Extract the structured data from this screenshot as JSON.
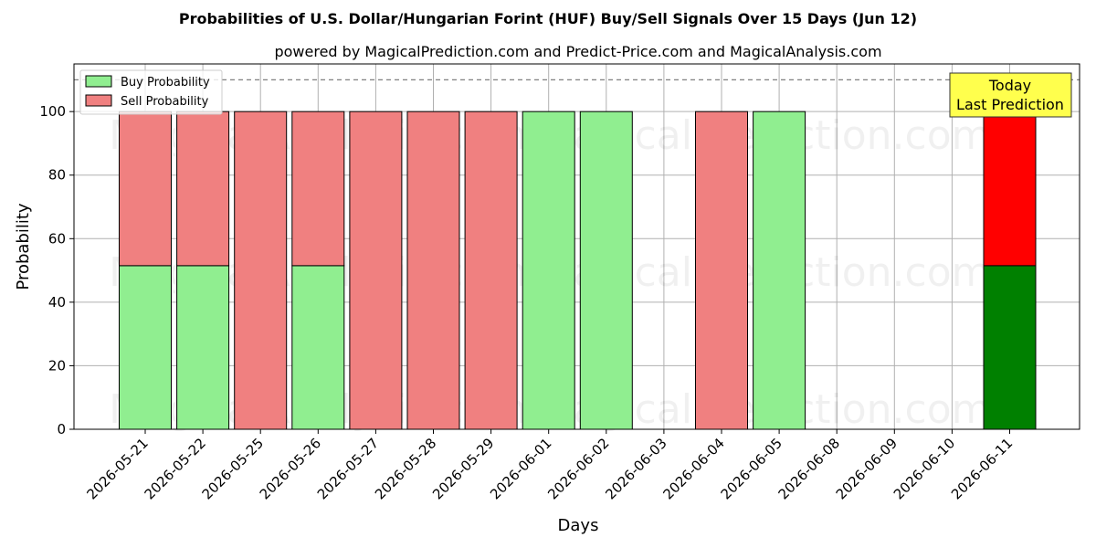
{
  "chart_data": {
    "type": "bar",
    "stacked": true,
    "title": "Probabilities of U.S. Dollar/Hungarian Forint (HUF) Buy/Sell Signals Over 15 Days (Jun 12)",
    "subtitle": "powered by MagicalPrediction.com and Predict-Price.com and MagicalAnalysis.com",
    "xlabel": "Days",
    "ylabel": "Probability",
    "ylim": [
      0,
      115
    ],
    "yticks": [
      0,
      20,
      40,
      60,
      80,
      100
    ],
    "grid": true,
    "legend_position": "top-left",
    "categories": [
      "2026-05-21",
      "2026-05-22",
      "2026-05-25",
      "2026-05-26",
      "2026-05-27",
      "2026-05-28",
      "2026-05-29",
      "2026-06-01",
      "2026-06-02",
      "2026-06-03",
      "2026-06-04",
      "2026-06-05",
      "2026-06-08",
      "2026-06-09",
      "2026-06-10",
      "2026-06-11"
    ],
    "series": [
      {
        "name": "Buy Probability",
        "color": "#90ee90",
        "highlight_color": "#008000",
        "values": [
          51.5,
          51.5,
          0,
          51.5,
          0,
          0,
          0,
          100,
          100,
          null,
          0,
          100,
          null,
          null,
          null,
          51.5
        ]
      },
      {
        "name": "Sell Probability",
        "color": "#f08080",
        "highlight_color": "#ff0000",
        "values": [
          48.5,
          48.5,
          100,
          48.5,
          100,
          100,
          100,
          0,
          0,
          null,
          100,
          0,
          null,
          null,
          null,
          48.5
        ]
      }
    ],
    "highlight_category": "2026-06-11",
    "reference_line": {
      "y": 110,
      "style": "dashed",
      "color": "#808080"
    },
    "annotation": {
      "lines": [
        "Today",
        "Last Prediction"
      ],
      "background": "#ffff4d"
    },
    "watermarks": [
      "MagicalAnalysis.com",
      "MagicalPrediction.com"
    ]
  }
}
